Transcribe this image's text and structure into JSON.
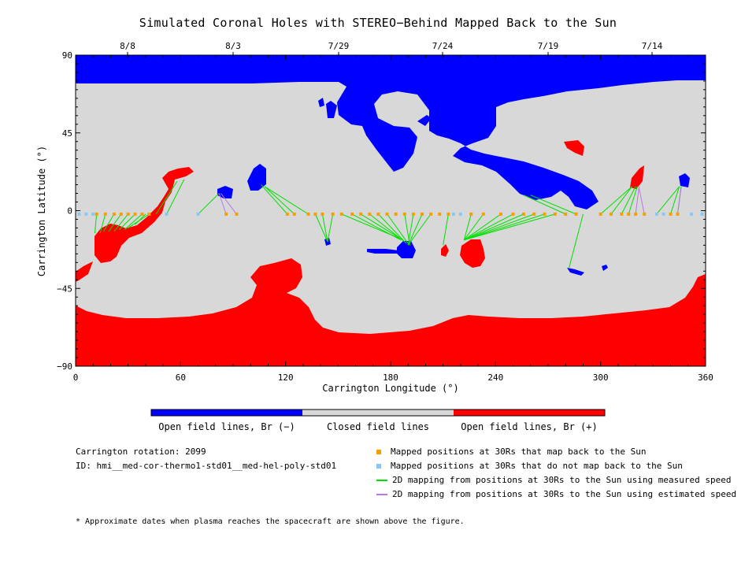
{
  "title": "Simulated Coronal Holes with STEREO−Behind Mapped Back to the Sun",
  "top_dates": [
    "8/8",
    "8/3",
    "7/29",
    "7/24",
    "7/19",
    "7/14"
  ],
  "chart_data": {
    "type": "map",
    "xlabel": "Carrington Longitude (°)",
    "ylabel": "Carrington Latitude (°)",
    "xlim": [
      0,
      360
    ],
    "ylim": [
      -90,
      90
    ],
    "x_ticks": [
      "0",
      "60",
      "120",
      "180",
      "240",
      "300",
      "360"
    ],
    "y_ticks": [
      "90",
      "45",
      "0",
      "−45",
      "−90"
    ],
    "colors": {
      "open_negative": "#0000ff",
      "closed": "#d8d8d8",
      "open_positive": "#ff0000",
      "mapped_yes": "#f5a000",
      "mapped_no": "#87c8f5",
      "measured_line": "#00e000",
      "estimated_line": "#b878e8"
    },
    "mapped_positions_at_30Rs": [
      {
        "lon": 12,
        "lat": -2
      },
      {
        "lon": 17,
        "lat": -2
      },
      {
        "lon": 22,
        "lat": -2
      },
      {
        "lon": 26,
        "lat": -2
      },
      {
        "lon": 30,
        "lat": -2
      },
      {
        "lon": 34,
        "lat": -2
      },
      {
        "lon": 38,
        "lat": -2
      },
      {
        "lon": 42,
        "lat": -2
      },
      {
        "lon": 86,
        "lat": -2
      },
      {
        "lon": 92,
        "lat": -2
      },
      {
        "lon": 121,
        "lat": -2
      },
      {
        "lon": 125,
        "lat": -2
      },
      {
        "lon": 133,
        "lat": -2
      },
      {
        "lon": 137,
        "lat": -2
      },
      {
        "lon": 141,
        "lat": -2
      },
      {
        "lon": 147,
        "lat": -2
      },
      {
        "lon": 152,
        "lat": -2
      },
      {
        "lon": 158,
        "lat": -2
      },
      {
        "lon": 163,
        "lat": -2
      },
      {
        "lon": 168,
        "lat": -2
      },
      {
        "lon": 173,
        "lat": -2
      },
      {
        "lon": 178,
        "lat": -2
      },
      {
        "lon": 183,
        "lat": -2
      },
      {
        "lon": 188,
        "lat": -2
      },
      {
        "lon": 193,
        "lat": -2
      },
      {
        "lon": 198,
        "lat": -2
      },
      {
        "lon": 203,
        "lat": -2
      },
      {
        "lon": 208,
        "lat": -2
      },
      {
        "lon": 213,
        "lat": -2
      },
      {
        "lon": 226,
        "lat": -2
      },
      {
        "lon": 233,
        "lat": -2
      },
      {
        "lon": 243,
        "lat": -2
      },
      {
        "lon": 250,
        "lat": -2
      },
      {
        "lon": 256,
        "lat": -2
      },
      {
        "lon": 262,
        "lat": -2
      },
      {
        "lon": 268,
        "lat": -2
      },
      {
        "lon": 274,
        "lat": -2
      },
      {
        "lon": 280,
        "lat": -2
      },
      {
        "lon": 286,
        "lat": -2
      },
      {
        "lon": 300,
        "lat": -2
      },
      {
        "lon": 306,
        "lat": -2
      },
      {
        "lon": 312,
        "lat": -2
      },
      {
        "lon": 316,
        "lat": -2
      },
      {
        "lon": 320,
        "lat": -2
      },
      {
        "lon": 325,
        "lat": -2
      },
      {
        "lon": 340,
        "lat": -2
      },
      {
        "lon": 344,
        "lat": -2
      }
    ],
    "unmapped_positions_at_30Rs": [
      {
        "lon": 2,
        "lat": -2
      },
      {
        "lon": 6,
        "lat": -2
      },
      {
        "lon": 10,
        "lat": -2
      },
      {
        "lon": 52,
        "lat": -2
      },
      {
        "lon": 70,
        "lat": -2
      },
      {
        "lon": 216,
        "lat": -2
      },
      {
        "lon": 220,
        "lat": -2
      },
      {
        "lon": 332,
        "lat": -2
      },
      {
        "lon": 336,
        "lat": -2
      },
      {
        "lon": 352,
        "lat": -2
      },
      {
        "lon": 358,
        "lat": -2
      }
    ],
    "measured_speed_mappings": [
      {
        "from": [
          12,
          -2
        ],
        "to": [
          11,
          -13
        ]
      },
      {
        "from": [
          17,
          -2
        ],
        "to": [
          14,
          -13
        ]
      },
      {
        "from": [
          22,
          -2
        ],
        "to": [
          16,
          -12
        ]
      },
      {
        "from": [
          26,
          -2
        ],
        "to": [
          19,
          -12
        ]
      },
      {
        "from": [
          30,
          -2
        ],
        "to": [
          22,
          -12
        ]
      },
      {
        "from": [
          34,
          -2
        ],
        "to": [
          25,
          -11
        ]
      },
      {
        "from": [
          38,
          -2
        ],
        "to": [
          28,
          -11
        ]
      },
      {
        "from": [
          42,
          -2
        ],
        "to": [
          30,
          -10
        ]
      },
      {
        "from": [
          46,
          -2
        ],
        "to": [
          58,
          17
        ]
      },
      {
        "from": [
          52,
          -2
        ],
        "to": [
          62,
          18
        ]
      },
      {
        "from": [
          40,
          -2
        ],
        "to": [
          34,
          -8
        ]
      },
      {
        "from": [
          70,
          -2
        ],
        "to": [
          82,
          10
        ]
      },
      {
        "from": [
          121,
          -2
        ],
        "to": [
          106,
          15
        ]
      },
      {
        "from": [
          125,
          -2
        ],
        "to": [
          108,
          14
        ]
      },
      {
        "from": [
          133,
          -2
        ],
        "to": [
          108,
          14
        ]
      },
      {
        "from": [
          137,
          -2
        ],
        "to": [
          144,
          -18
        ]
      },
      {
        "from": [
          141,
          -2
        ],
        "to": [
          144,
          -18
        ]
      },
      {
        "from": [
          147,
          -2
        ],
        "to": [
          144,
          -18
        ]
      },
      {
        "from": [
          152,
          -2
        ],
        "to": [
          185,
          -16
        ]
      },
      {
        "from": [
          158,
          -2
        ],
        "to": [
          186,
          -17
        ]
      },
      {
        "from": [
          163,
          -2
        ],
        "to": [
          187,
          -17
        ]
      },
      {
        "from": [
          168,
          -2
        ],
        "to": [
          188,
          -18
        ]
      },
      {
        "from": [
          173,
          -2
        ],
        "to": [
          189,
          -19
        ]
      },
      {
        "from": [
          178,
          -2
        ],
        "to": [
          190,
          -19
        ]
      },
      {
        "from": [
          188,
          -2
        ],
        "to": [
          191,
          -20
        ]
      },
      {
        "from": [
          193,
          -2
        ],
        "to": [
          190,
          -20
        ]
      },
      {
        "from": [
          198,
          -2
        ],
        "to": [
          190,
          -20
        ]
      },
      {
        "from": [
          203,
          -2
        ],
        "to": [
          190,
          -20
        ]
      },
      {
        "from": [
          213,
          -2
        ],
        "to": [
          210,
          -20
        ]
      },
      {
        "from": [
          226,
          -2
        ],
        "to": [
          222,
          -17
        ]
      },
      {
        "from": [
          233,
          -2
        ],
        "to": [
          222,
          -17
        ]
      },
      {
        "from": [
          243,
          -2
        ],
        "to": [
          222,
          -17
        ]
      },
      {
        "from": [
          250,
          -2
        ],
        "to": [
          222,
          -17
        ]
      },
      {
        "from": [
          256,
          -2
        ],
        "to": [
          222,
          -17
        ]
      },
      {
        "from": [
          262,
          -2
        ],
        "to": [
          222,
          -17
        ]
      },
      {
        "from": [
          268,
          -2
        ],
        "to": [
          222,
          -17
        ]
      },
      {
        "from": [
          274,
          -2
        ],
        "to": [
          222,
          -17
        ]
      },
      {
        "from": [
          280,
          -2
        ],
        "to": [
          256,
          9
        ]
      },
      {
        "from": [
          286,
          -2
        ],
        "to": [
          260,
          9
        ]
      },
      {
        "from": [
          290,
          -2
        ],
        "to": [
          282,
          -33
        ]
      },
      {
        "from": [
          300,
          -2
        ],
        "to": [
          318,
          14
        ]
      },
      {
        "from": [
          306,
          -2
        ],
        "to": [
          318,
          14
        ]
      },
      {
        "from": [
          312,
          -2
        ],
        "to": [
          320,
          14
        ]
      },
      {
        "from": [
          316,
          -2
        ],
        "to": [
          321,
          14
        ]
      },
      {
        "from": [
          332,
          -2
        ],
        "to": [
          345,
          14
        ]
      },
      {
        "from": [
          340,
          -2
        ],
        "to": [
          345,
          14
        ]
      },
      {
        "from": [
          344,
          -2
        ],
        "to": [
          346,
          14
        ]
      }
    ],
    "estimated_speed_mappings": [
      {
        "from": [
          86,
          -2
        ],
        "to": [
          82,
          10
        ]
      },
      {
        "from": [
          92,
          -2
        ],
        "to": [
          83,
          10
        ]
      },
      {
        "from": [
          320,
          -2
        ],
        "to": [
          322,
          14
        ]
      },
      {
        "from": [
          325,
          -2
        ],
        "to": [
          322,
          13
        ]
      },
      {
        "from": [
          344,
          -2
        ],
        "to": [
          346,
          13
        ]
      }
    ]
  },
  "colorbar": {
    "segments": [
      "Open field lines, Br (−)",
      "Closed field lines",
      "Open field lines, Br (+)"
    ]
  },
  "info": {
    "rotation": "Carrington rotation: 2099",
    "id": "ID: hmi__med-cor-thermo1-std01__med-hel-poly-std01"
  },
  "legend": [
    {
      "label": "Mapped positions at 30Rs that map back to the Sun",
      "kind": "square",
      "color": "#f5a000"
    },
    {
      "label": "Mapped positions at 30Rs that do not map back to the Sun",
      "kind": "square",
      "color": "#87c8f5"
    },
    {
      "label": "2D mapping from positions at 30Rs to the Sun using measured speed",
      "kind": "line",
      "color": "#00e000"
    },
    {
      "label": "2D mapping from positions at 30Rs to the Sun using estimated speed",
      "kind": "line",
      "color": "#b878e8"
    }
  ],
  "footnote": "* Approximate dates when plasma reaches the spacecraft are shown above the figure."
}
